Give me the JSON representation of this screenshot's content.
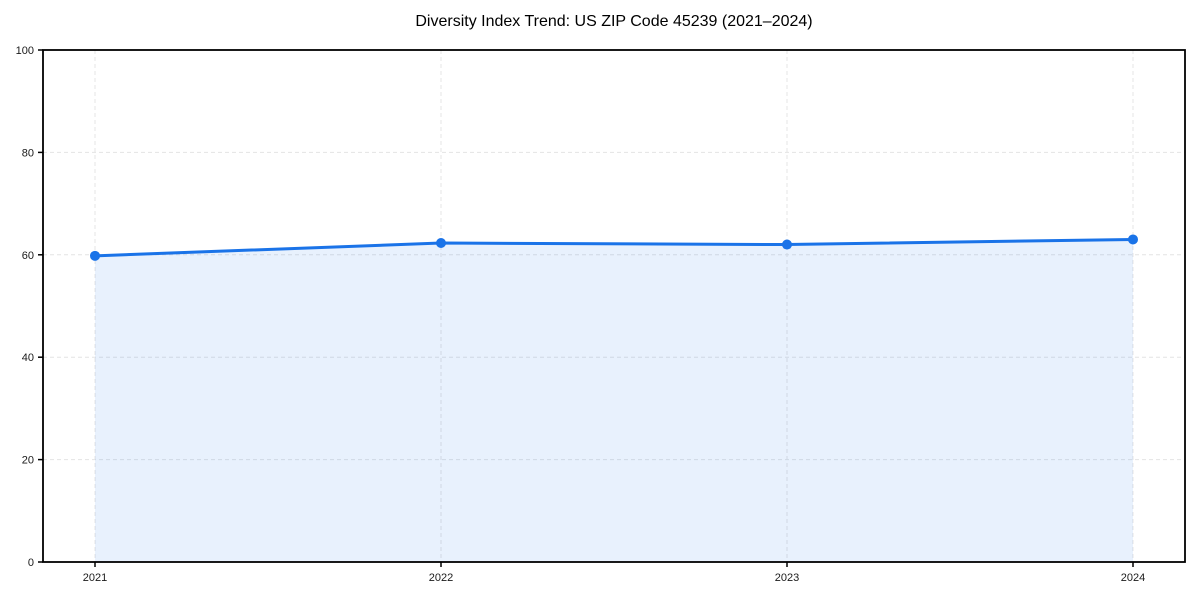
{
  "page": {
    "background_color": "#ffffff"
  },
  "chart_data": {
    "type": "area",
    "title": "Diversity Index Trend: US ZIP Code 45239 (2021–2024)",
    "series_name": "Diversity Index",
    "categories": [
      "2021",
      "2022",
      "2023",
      "2024"
    ],
    "values": [
      59.8,
      62.3,
      62.0,
      63.0
    ],
    "xlabel": "",
    "ylabel": "",
    "ylim": [
      0,
      100
    ],
    "yticks": [
      0,
      20,
      40,
      60,
      80,
      100
    ],
    "grid": "dashed-both-axes",
    "legend_position": "none",
    "line_color": "#1a73e8",
    "marker_color": "#1a73e8",
    "marker_shape": "circle",
    "fill_color": "#1a73e8",
    "fill_opacity": 0.1,
    "grid_color": "#e4e4e4",
    "axis_color": "#000000",
    "tick_label_color": "#1a1a1a",
    "title_color": "#000000"
  }
}
